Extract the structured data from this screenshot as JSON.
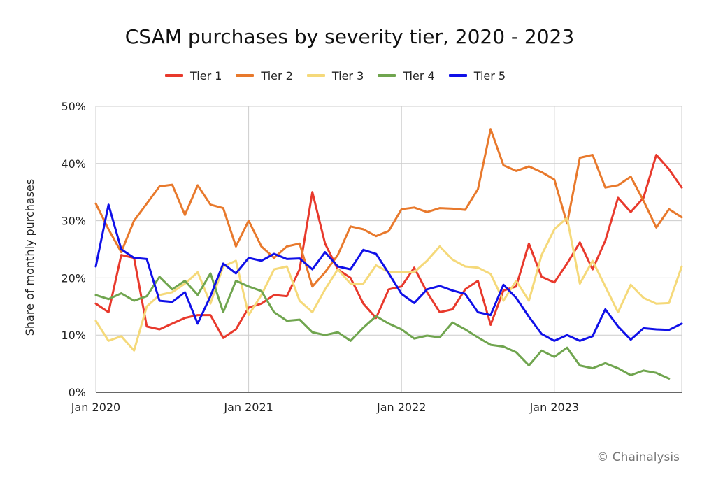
{
  "header": {
    "title": "CSAM purchases by severity tier, 2020 - 2023"
  },
  "watermark": "© Chainalysis",
  "chart_data": {
    "type": "line",
    "title": "CSAM purchases by severity tier, 2020 - 2023",
    "xlabel": "",
    "ylabel": "Share of monthly purchases",
    "ylim": [
      0,
      50
    ],
    "y_ticks": [
      "0%",
      "10%",
      "20%",
      "30%",
      "40%",
      "50%"
    ],
    "x_ticks": [
      "Jan 2020",
      "Jan 2021",
      "Jan 2022",
      "Jan 2023"
    ],
    "x_tick_index": [
      0,
      12,
      24,
      36
    ],
    "grid": true,
    "legend_position": "top",
    "x": [
      "2020-01",
      "2020-02",
      "2020-03",
      "2020-04",
      "2020-05",
      "2020-06",
      "2020-07",
      "2020-08",
      "2020-09",
      "2020-10",
      "2020-11",
      "2020-12",
      "2021-01",
      "2021-02",
      "2021-03",
      "2021-04",
      "2021-05",
      "2021-06",
      "2021-07",
      "2021-08",
      "2021-09",
      "2021-10",
      "2021-11",
      "2021-12",
      "2022-01",
      "2022-02",
      "2022-03",
      "2022-04",
      "2022-05",
      "2022-06",
      "2022-07",
      "2022-08",
      "2022-09",
      "2022-10",
      "2022-11",
      "2022-12",
      "2023-01",
      "2023-02",
      "2023-03",
      "2023-04",
      "2023-05",
      "2023-06",
      "2023-07",
      "2023-08",
      "2023-09",
      "2023-10",
      "2023-11"
    ],
    "series": [
      {
        "name": "Tier 1",
        "color": "#e8392c",
        "values": [
          15.5,
          14,
          24,
          23.5,
          11.5,
          11,
          12,
          13,
          13.5,
          13.5,
          9.5,
          11,
          14.8,
          15.5,
          17,
          16.8,
          21.5,
          35,
          26,
          21.5,
          20,
          15.5,
          13,
          18,
          18.5,
          21.8,
          17.5,
          14,
          14.5,
          18,
          19.5,
          11.8,
          17.8,
          18.5,
          26,
          20.2,
          19.2,
          22.5,
          26.2,
          21.5,
          26.5,
          34,
          31.5,
          34,
          41.5,
          39,
          35.8
        ]
      },
      {
        "name": "Tier 2",
        "color": "#e8792c",
        "values": [
          33,
          28.5,
          24.5,
          30,
          33,
          36,
          36.3,
          31,
          36.2,
          32.8,
          32.2,
          25.5,
          30,
          25.5,
          23.5,
          25.5,
          26,
          18.5,
          21,
          24,
          29,
          28.5,
          27.3,
          28.2,
          32,
          32.3,
          31.5,
          32.2,
          32.1,
          31.9,
          35.5,
          46,
          39.7,
          38.7,
          39.5,
          38.5,
          37.2,
          29.5,
          41,
          41.5,
          35.8,
          36.2,
          37.7,
          33.5,
          28.8,
          32,
          30.6
        ]
      },
      {
        "name": "Tier 3",
        "color": "#f5d97a",
        "values": [
          12.5,
          9,
          9.8,
          7.3,
          15,
          17,
          17.5,
          19,
          21,
          15.5,
          22,
          23,
          13.5,
          17,
          21.5,
          22,
          16,
          14,
          18,
          21.5,
          19,
          19,
          22.2,
          21,
          21,
          21,
          23,
          25.5,
          23.2,
          22,
          21.8,
          20.7,
          16,
          19.5,
          16,
          24,
          28.5,
          30.5,
          19,
          23,
          18.5,
          14,
          18.8,
          16.5,
          15.5,
          15.6,
          22
        ]
      },
      {
        "name": "Tier 4",
        "color": "#70a54f",
        "values": [
          17,
          16.3,
          17.3,
          16,
          16.8,
          20.2,
          18,
          19.5,
          17,
          20.8,
          14,
          19.5,
          18.5,
          17.7,
          14,
          12.5,
          12.7,
          10.5,
          10,
          10.5,
          9,
          11.3,
          13.3,
          12,
          11,
          9.4,
          9.9,
          9.6,
          12.2,
          11,
          9.6,
          8.3,
          8,
          7,
          4.7,
          7.3,
          6.2,
          7.8,
          4.7,
          4.2,
          5.1,
          4.2,
          3,
          3.8,
          3.4,
          2.4,
          null
        ]
      },
      {
        "name": "Tier 5",
        "color": "#1010e8",
        "values": [
          22,
          32.8,
          25,
          23.5,
          23.3,
          16,
          15.8,
          17.5,
          12,
          16.8,
          22.5,
          20.8,
          23.5,
          23,
          24.2,
          23.3,
          23.4,
          21.5,
          24.5,
          22,
          21.5,
          24.9,
          24.2,
          20.8,
          17.2,
          15.6,
          18,
          18.6,
          17.8,
          17.2,
          14,
          13.5,
          18.8,
          16.5,
          13.2,
          10.2,
          9,
          10,
          9,
          9.8,
          14.5,
          11.5,
          9.2,
          11.2,
          11,
          10.9,
          12
        ]
      }
    ]
  }
}
